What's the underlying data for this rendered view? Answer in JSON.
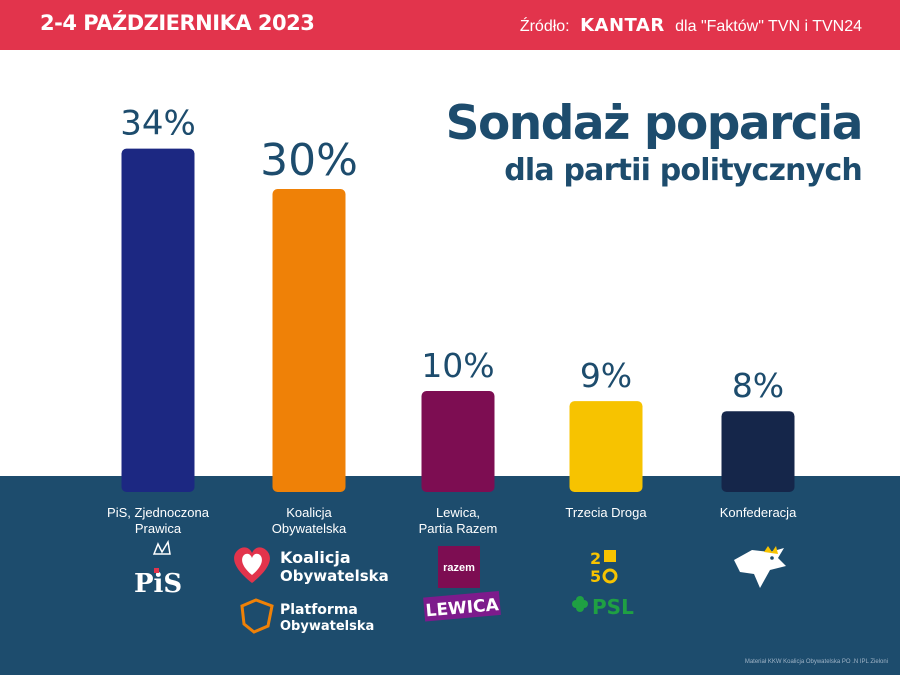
{
  "header": {
    "date": "2-4 PAŹDZIERNIKA 2023",
    "source_prefix": "Źródło:",
    "source_brand": "KANTAR",
    "source_suffix": "dla \"Faktów\" TVN i TVN24"
  },
  "title": {
    "line1": "Sondaż poparcia",
    "line2": "dla partii politycznych"
  },
  "chart_data": {
    "type": "bar",
    "categories": [
      "PiS, Zjednoczona Prawica",
      "Koalicja Obywatelska",
      "Lewica, Partia Razem",
      "Trzecia Droga",
      "Konfederacja"
    ],
    "category_lines": [
      [
        "PiS, Zjednoczona",
        "Prawica"
      ],
      [
        "Koalicja",
        "Obywatelska"
      ],
      [
        "Lewica,",
        "Partia Razem"
      ],
      [
        "Trzecia Droga"
      ],
      [
        "Konfederacja"
      ]
    ],
    "values": [
      34,
      30,
      10,
      9,
      8
    ],
    "value_labels": [
      "34%",
      "30%",
      "10%",
      "9%",
      "8%"
    ],
    "colors": [
      "#1c2882",
      "#ef8107",
      "#7d0d52",
      "#f7c300",
      "#15264a"
    ],
    "unit": "%",
    "grid": false
  },
  "logos": {
    "pis": "PiS",
    "ko_line1": "Koalicja",
    "ko_line2": "Obywatelska",
    "po_line1": "Platforma",
    "po_line2": "Obywatelska",
    "razem": "razem",
    "lewica": "LEWICA",
    "psl": "PSL"
  },
  "footnote": "Materiał KKW Koalicja Obywatelska PO .N IPL Zieloni",
  "colors": {
    "red_bar": "#e2344c",
    "navy": "#1d4c6d"
  }
}
